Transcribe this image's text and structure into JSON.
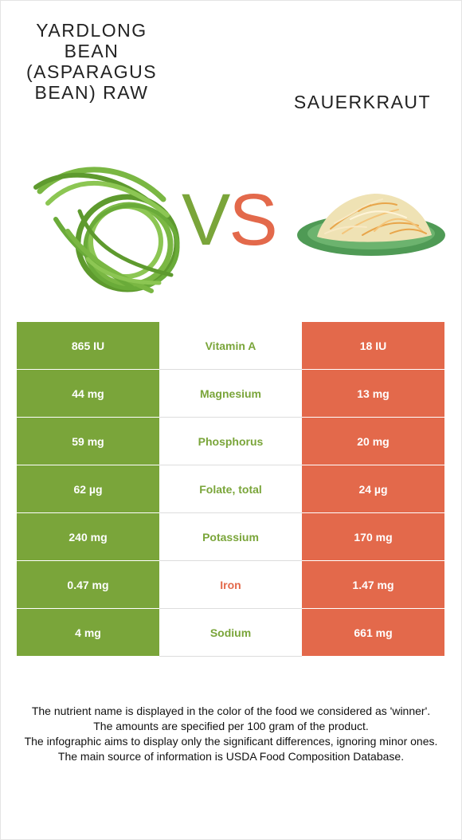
{
  "left_food": {
    "name": "YARDLONG\nBEAN\n(ASPARAGUS\nBEAN) RAW",
    "image_icon": "green-beans-image",
    "color": "#7aa53a"
  },
  "right_food": {
    "name": "SAUERKRAUT",
    "image_icon": "sauerkraut-plate-image",
    "color": "#e3694b"
  },
  "vs": {
    "v": "V",
    "s": "S"
  },
  "rows": [
    {
      "left": "865 IU",
      "nutrient": "Vitamin A",
      "right": "18 IU",
      "winner": "left"
    },
    {
      "left": "44 mg",
      "nutrient": "Magnesium",
      "right": "13 mg",
      "winner": "left"
    },
    {
      "left": "59 mg",
      "nutrient": "Phosphorus",
      "right": "20 mg",
      "winner": "left"
    },
    {
      "left": "62 µg",
      "nutrient": "Folate, total",
      "right": "24 µg",
      "winner": "left"
    },
    {
      "left": "240 mg",
      "nutrient": "Potassium",
      "right": "170 mg",
      "winner": "left"
    },
    {
      "left": "0.47 mg",
      "nutrient": "Iron",
      "right": "1.47 mg",
      "winner": "right"
    },
    {
      "left": "4 mg",
      "nutrient": "Sodium",
      "right": "661 mg",
      "winner": "left"
    }
  ],
  "footer": [
    "The nutrient name is displayed in the color of the food we considered as 'winner'.",
    "The amounts are specified per 100 gram of the product.",
    "The infographic aims to display only the significant differences, ignoring minor ones.",
    "The main source of information is USDA Food Composition Database."
  ]
}
